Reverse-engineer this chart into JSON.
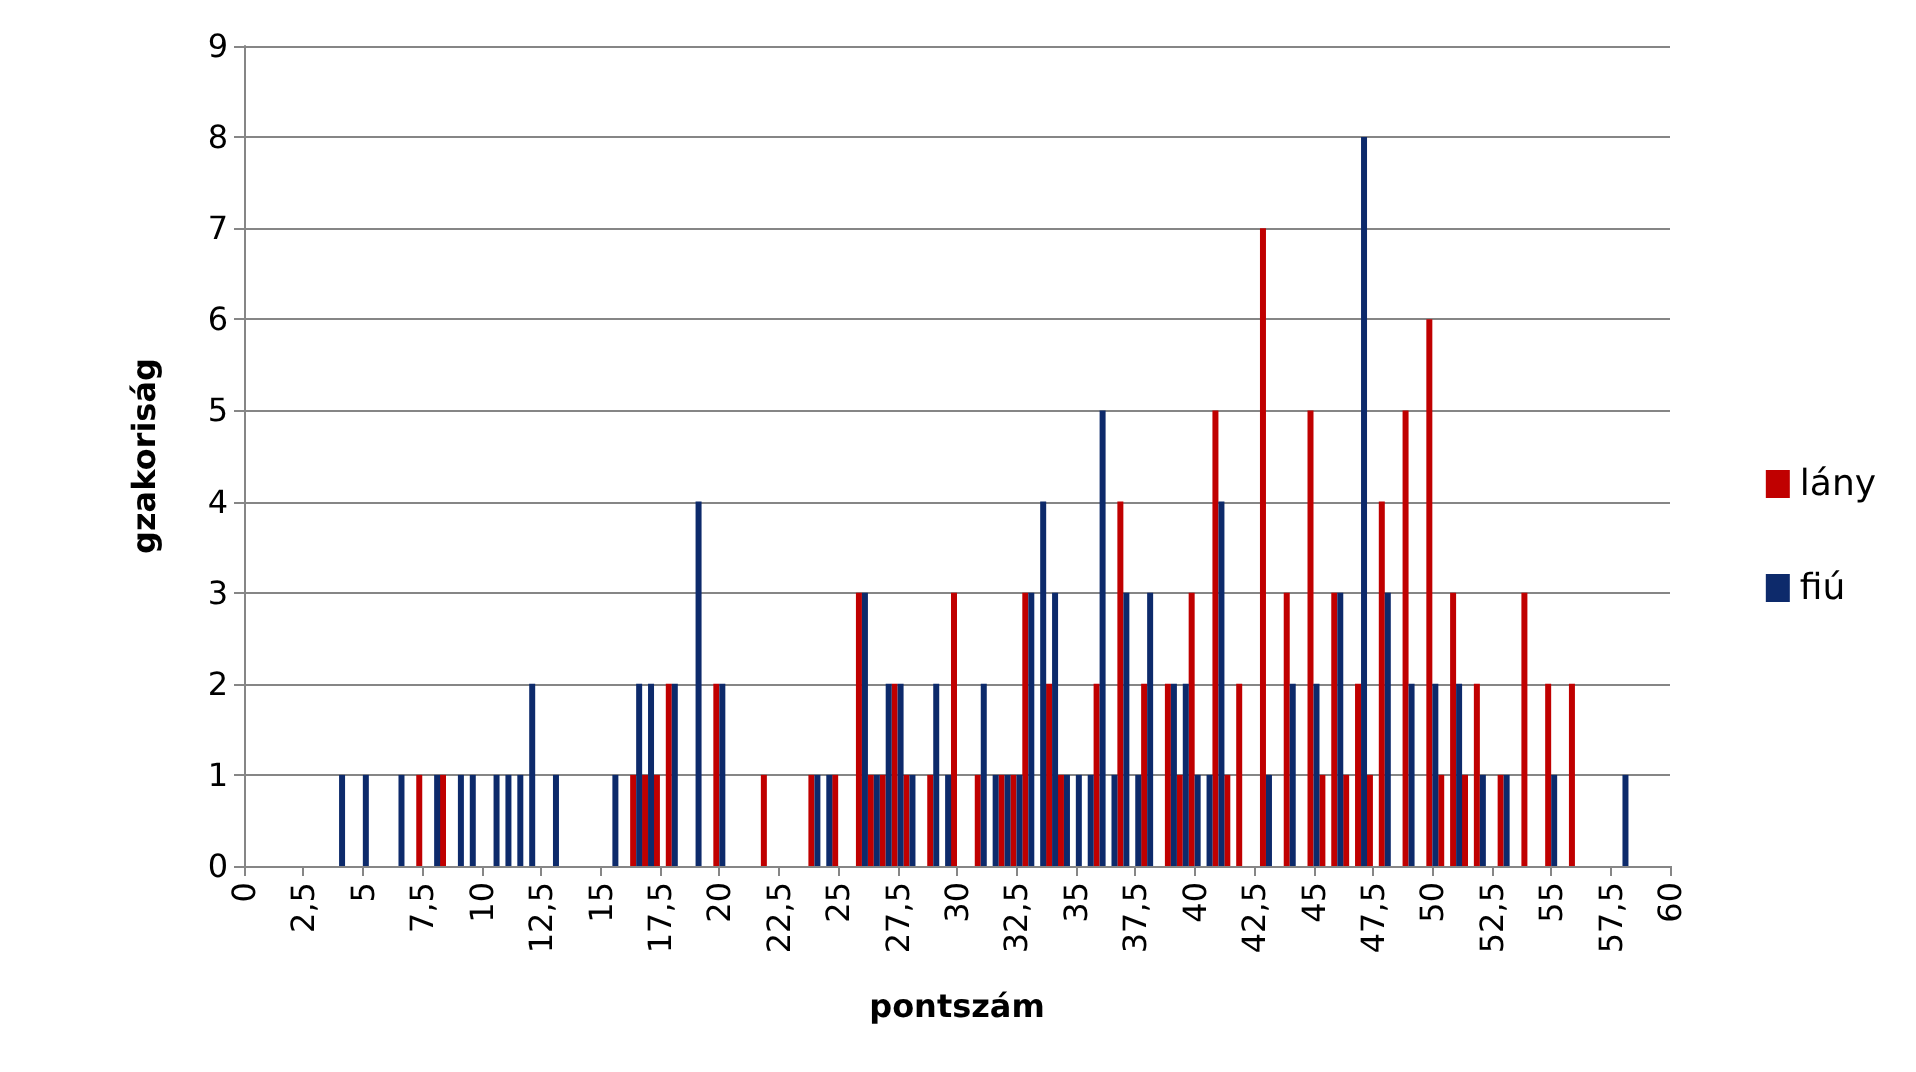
{
  "chart_data": {
    "type": "bar",
    "xlabel": "pontszám",
    "ylabel": "gzakoriság",
    "xlim": [
      0,
      60
    ],
    "xticks": [
      0,
      {
        "value": 2.5,
        "label": "2,5"
      },
      5,
      {
        "value": 7.5,
        "label": "7,5"
      },
      10,
      {
        "value": 12.5,
        "label": "12,5"
      },
      15,
      {
        "value": 17.5,
        "label": "17,5"
      },
      20,
      {
        "value": 22.5,
        "label": "22,5"
      },
      25,
      {
        "value": 27.5,
        "label": "27,5"
      },
      30,
      {
        "value": 32.5,
        "label": "32,5"
      },
      35,
      {
        "value": 37.5,
        "label": "37,5"
      },
      40,
      {
        "value": 42.5,
        "label": "42,5"
      },
      45,
      {
        "value": 47.5,
        "label": "47,5"
      },
      50,
      {
        "value": 52.5,
        "label": "52,5"
      },
      55,
      {
        "value": 57.5,
        "label": "57,5"
      },
      60
    ],
    "ylim": [
      0,
      9
    ],
    "yticks": [
      0,
      1,
      2,
      3,
      4,
      5,
      6,
      7,
      8,
      9
    ],
    "grid": "y",
    "legend": "right",
    "series": [
      {
        "name": "lány",
        "color": "#c00000",
        "x": [
          7.5,
          8.5,
          16.5,
          17,
          17.5,
          18,
          20,
          22,
          24,
          25,
          26,
          26.5,
          27,
          27.5,
          28,
          29,
          30,
          31,
          32,
          32.5,
          33,
          34,
          34.5,
          36,
          37,
          38,
          39,
          39.5,
          40,
          41,
          41.5,
          42,
          43,
          44,
          45,
          45.5,
          46,
          46.5,
          47,
          47.5,
          48,
          49,
          50,
          50.5,
          51,
          51.5,
          52,
          53,
          54,
          55,
          56
        ],
        "values": [
          1,
          1,
          1,
          1,
          1,
          2,
          2,
          1,
          1,
          1,
          3,
          1,
          1,
          2,
          1,
          1,
          3,
          1,
          1,
          1,
          3,
          2,
          1,
          2,
          4,
          2,
          2,
          1,
          3,
          5,
          1,
          2,
          7,
          3,
          5,
          1,
          3,
          1,
          2,
          1,
          4,
          5,
          6,
          1,
          3,
          1,
          2,
          1,
          3,
          2,
          2
        ]
      },
      {
        "name": "fiú",
        "color": "#0d2a6b",
        "x": [
          4,
          5,
          6.5,
          8,
          9,
          9.5,
          10.5,
          11,
          11.5,
          12,
          13,
          15.5,
          16.5,
          17,
          18,
          19,
          20,
          24,
          24.5,
          26,
          26.5,
          27,
          27.5,
          28,
          29,
          29.5,
          31,
          31.5,
          32,
          32.5,
          33,
          33.5,
          34,
          34.5,
          35,
          35.5,
          36,
          36.5,
          37,
          37.5,
          38,
          39,
          39.5,
          40,
          40.5,
          41,
          43,
          44,
          45,
          46,
          47,
          48,
          49,
          50,
          51,
          52,
          53,
          55,
          58
        ],
        "values": [
          1,
          1,
          1,
          1,
          1,
          1,
          1,
          1,
          1,
          2,
          1,
          1,
          2,
          2,
          2,
          4,
          2,
          1,
          1,
          3,
          1,
          2,
          2,
          1,
          2,
          1,
          2,
          1,
          1,
          1,
          3,
          4,
          3,
          1,
          1,
          1,
          5,
          1,
          3,
          1,
          3,
          2,
          2,
          1,
          1,
          4,
          1,
          2,
          2,
          3,
          8,
          3,
          2,
          2,
          2,
          1,
          1,
          1,
          1
        ]
      }
    ]
  }
}
